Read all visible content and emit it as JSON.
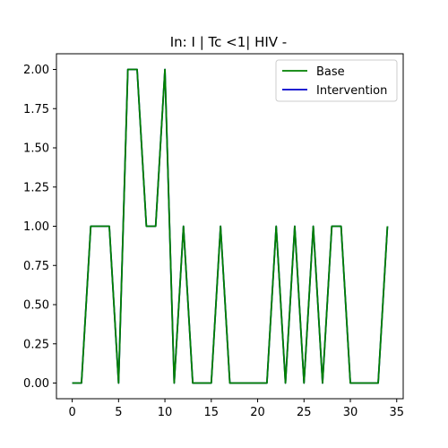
{
  "chart_data": {
    "type": "line",
    "title": "In: I | Tc <1| HIV -",
    "xlabel": "",
    "ylabel": "",
    "xlim": [
      -1.7,
      35.7
    ],
    "ylim": [
      -0.1,
      2.1
    ],
    "xticks": [
      0,
      5,
      10,
      15,
      20,
      25,
      30,
      35
    ],
    "yticks": [
      0.0,
      0.25,
      0.5,
      0.75,
      1.0,
      1.25,
      1.5,
      1.75,
      2.0
    ],
    "xtick_labels": [
      "0",
      "5",
      "10",
      "15",
      "20",
      "25",
      "30",
      "35"
    ],
    "ytick_labels": [
      "0.00",
      "0.25",
      "0.50",
      "0.75",
      "1.00",
      "1.25",
      "1.50",
      "1.75",
      "2.00"
    ],
    "grid": false,
    "legend_position": "top-right",
    "x": [
      0,
      1,
      2,
      3,
      4,
      5,
      6,
      7,
      8,
      9,
      10,
      11,
      12,
      13,
      14,
      15,
      16,
      17,
      18,
      19,
      20,
      21,
      22,
      23,
      24,
      25,
      26,
      27,
      28,
      29,
      30,
      31,
      32,
      33,
      34
    ],
    "series": [
      {
        "name": "Base",
        "color": "#008000",
        "values": [
          0,
          0,
          1,
          1,
          1,
          0,
          2,
          2,
          1,
          1,
          2,
          0,
          1,
          0,
          0,
          0,
          1,
          0,
          0,
          0,
          0,
          0,
          1,
          0,
          1,
          0,
          1,
          0,
          1,
          1,
          0,
          0,
          0,
          0,
          1
        ]
      },
      {
        "name": "Intervention",
        "color": "#0000cc",
        "values": [
          0,
          0,
          1,
          1,
          1,
          0,
          2,
          2,
          1,
          1,
          2,
          0,
          1,
          0,
          0,
          0,
          1,
          0,
          0,
          0,
          0,
          0,
          1,
          0,
          1,
          0,
          1,
          0,
          1,
          1,
          0,
          0,
          0,
          0,
          1
        ]
      }
    ]
  }
}
